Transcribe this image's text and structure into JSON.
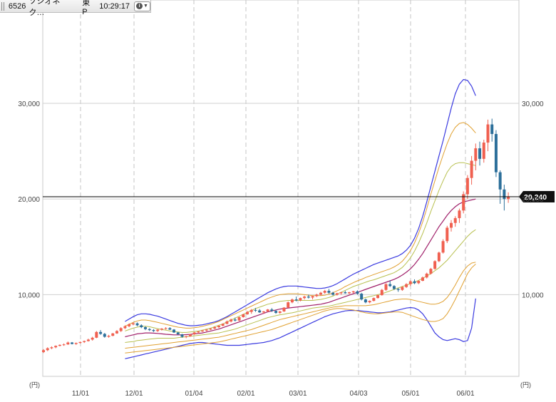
{
  "header": {
    "code": "6526",
    "name": "ソシオネク…",
    "exchange": "東P",
    "time": "10:29:17",
    "info_icon": "info-icon",
    "menu_icon": "caret-down-icon"
  },
  "chart_data": {
    "type": "candlestick",
    "x_ticks": [
      "11/01",
      "12/01",
      "01/04",
      "02/01",
      "03/01",
      "04/03",
      "05/01",
      "06/01"
    ],
    "y_ticks": [
      10000,
      20000,
      30000
    ],
    "y_tick_labels": [
      "10,000",
      "20,000",
      "30,000"
    ],
    "ylim": [
      1000,
      40000
    ],
    "y_unit": "(円)",
    "grid": true,
    "current_price": 20240,
    "current_price_label": "20,240",
    "colors": {
      "up": "#f06050",
      "down": "#2c6f9a",
      "outer_band": "#3a3ae0",
      "mid_band": "#e0a030",
      "inner_band": "#b8c050",
      "sma": "#a0206a",
      "price_line": "#000000"
    },
    "candles": [
      [
        4000,
        4300,
        3900,
        4200
      ],
      [
        4200,
        4500,
        4100,
        4400
      ],
      [
        4400,
        4600,
        4300,
        4500
      ],
      [
        4500,
        4700,
        4400,
        4650
      ],
      [
        4650,
        4800,
        4600,
        4750
      ],
      [
        4750,
        4900,
        4650,
        4800
      ],
      [
        4800,
        5100,
        4750,
        5000
      ],
      [
        5000,
        5050,
        4800,
        4850
      ],
      [
        4850,
        5000,
        4750,
        4950
      ],
      [
        4950,
        5100,
        4900,
        5050
      ],
      [
        5050,
        5200,
        4950,
        5150
      ],
      [
        5150,
        5400,
        5100,
        5300
      ],
      [
        5300,
        5600,
        5200,
        5500
      ],
      [
        5500,
        6200,
        5450,
        6100
      ],
      [
        6100,
        6300,
        5800,
        5900
      ],
      [
        5900,
        6000,
        5500,
        5600
      ],
      [
        5600,
        5800,
        5500,
        5700
      ],
      [
        5700,
        6000,
        5650,
        5950
      ],
      [
        5950,
        6300,
        5900,
        6200
      ],
      [
        6200,
        6600,
        6100,
        6500
      ],
      [
        6500,
        6800,
        6400,
        6700
      ],
      [
        6700,
        7000,
        6600,
        6900
      ],
      [
        6900,
        7100,
        6800,
        7000
      ],
      [
        7000,
        7100,
        6700,
        6800
      ],
      [
        6800,
        6900,
        6500,
        6600
      ],
      [
        6600,
        6700,
        6300,
        6400
      ],
      [
        6400,
        6500,
        6200,
        6300
      ],
      [
        6300,
        6400,
        6100,
        6200
      ],
      [
        6200,
        6400,
        6100,
        6350
      ],
      [
        6350,
        6500,
        6250,
        6450
      ],
      [
        6450,
        6600,
        6350,
        6500
      ],
      [
        6500,
        6600,
        6300,
        6350
      ],
      [
        6350,
        6400,
        6000,
        6050
      ],
      [
        6050,
        6100,
        5800,
        5850
      ],
      [
        5850,
        5900,
        5500,
        5600
      ],
      [
        5600,
        5700,
        5450,
        5650
      ],
      [
        5650,
        5900,
        5600,
        5850
      ],
      [
        5850,
        6100,
        5800,
        6050
      ],
      [
        6050,
        6200,
        5950,
        6150
      ],
      [
        6150,
        6300,
        6100,
        6250
      ],
      [
        6250,
        6400,
        6150,
        6350
      ],
      [
        6350,
        6500,
        6300,
        6450
      ],
      [
        6450,
        6700,
        6400,
        6600
      ],
      [
        6600,
        6800,
        6500,
        6750
      ],
      [
        6750,
        7000,
        6700,
        6950
      ],
      [
        6950,
        7300,
        6900,
        7200
      ],
      [
        7200,
        7500,
        7100,
        7400
      ],
      [
        7400,
        7600,
        7200,
        7300
      ],
      [
        7300,
        7700,
        7250,
        7650
      ],
      [
        7650,
        8000,
        7600,
        7950
      ],
      [
        7950,
        8300,
        7900,
        8200
      ],
      [
        8200,
        8500,
        8000,
        8400
      ],
      [
        8400,
        8600,
        8200,
        8350
      ],
      [
        8350,
        8500,
        8100,
        8150
      ],
      [
        8150,
        8300,
        8000,
        8250
      ],
      [
        8250,
        8500,
        8200,
        8450
      ],
      [
        8450,
        8600,
        8200,
        8300
      ],
      [
        8300,
        8400,
        8000,
        8100
      ],
      [
        8100,
        8300,
        8000,
        8250
      ],
      [
        8250,
        8700,
        8200,
        8650
      ],
      [
        8650,
        9300,
        8600,
        9200
      ],
      [
        9200,
        9600,
        9100,
        9500
      ],
      [
        9500,
        9800,
        9300,
        9400
      ],
      [
        9400,
        9700,
        9300,
        9650
      ],
      [
        9650,
        9900,
        9500,
        9800
      ],
      [
        9800,
        10000,
        9600,
        9700
      ],
      [
        9700,
        9900,
        9500,
        9850
      ],
      [
        9850,
        10100,
        9750,
        10000
      ],
      [
        10000,
        10300,
        9900,
        10200
      ],
      [
        10200,
        10500,
        10100,
        10400
      ],
      [
        10400,
        10600,
        10100,
        10200
      ],
      [
        10200,
        10300,
        9900,
        10000
      ],
      [
        10000,
        10200,
        9900,
        10150
      ],
      [
        10150,
        10300,
        10000,
        10250
      ],
      [
        10250,
        10400,
        10100,
        10150
      ],
      [
        10150,
        10300,
        10050,
        10250
      ],
      [
        10250,
        10400,
        10150,
        10350
      ],
      [
        10350,
        10450,
        10000,
        10100
      ],
      [
        10100,
        10200,
        9400,
        9500
      ],
      [
        9500,
        9600,
        9100,
        9200
      ],
      [
        9200,
        9400,
        9100,
        9350
      ],
      [
        9350,
        9700,
        9300,
        9650
      ],
      [
        9650,
        10000,
        9600,
        9950
      ],
      [
        9950,
        10600,
        9900,
        10500
      ],
      [
        10500,
        11200,
        10400,
        11100
      ],
      [
        11100,
        11500,
        10800,
        10900
      ],
      [
        10900,
        11000,
        10500,
        10600
      ],
      [
        10600,
        10700,
        10300,
        10500
      ],
      [
        10500,
        10900,
        10400,
        10800
      ],
      [
        10800,
        11200,
        10700,
        11100
      ],
      [
        11100,
        11500,
        10900,
        11400
      ],
      [
        11400,
        11600,
        11100,
        11200
      ],
      [
        11200,
        11500,
        11100,
        11450
      ],
      [
        11450,
        11900,
        11400,
        11800
      ],
      [
        11800,
        12300,
        11700,
        12200
      ],
      [
        12200,
        12800,
        12100,
        12700
      ],
      [
        12700,
        13600,
        12600,
        13500
      ],
      [
        13500,
        14500,
        13400,
        14400
      ],
      [
        14400,
        15800,
        14300,
        15600
      ],
      [
        15600,
        17200,
        15400,
        17000
      ],
      [
        17000,
        17800,
        16600,
        17500
      ],
      [
        17500,
        18200,
        17100,
        18000
      ],
      [
        18000,
        19000,
        17500,
        18800
      ],
      [
        18800,
        20800,
        18500,
        20500
      ],
      [
        20500,
        22500,
        20000,
        22200
      ],
      [
        22200,
        24500,
        21500,
        24000
      ],
      [
        24000,
        25800,
        23000,
        25300
      ],
      [
        25300,
        26000,
        23500,
        24200
      ],
      [
        24200,
        26200,
        23800,
        25900
      ],
      [
        25900,
        28300,
        25000,
        27800
      ],
      [
        27800,
        28400,
        26000,
        26800
      ],
      [
        26800,
        27200,
        22300,
        22800
      ],
      [
        22800,
        23000,
        19500,
        21000
      ],
      [
        21000,
        21500,
        18800,
        20000
      ],
      [
        20000,
        20700,
        19600,
        20240
      ]
    ],
    "bands": {
      "start_index": 20,
      "outer_upper": [
        7200,
        7450,
        7700,
        7900,
        8000,
        8000,
        7950,
        7850,
        7750,
        7600,
        7450,
        7300,
        7150,
        7000,
        6900,
        6800,
        6750,
        6750,
        6800,
        6850,
        6950,
        7050,
        7150,
        7300,
        7500,
        7700,
        7950,
        8200,
        8450,
        8700,
        8950,
        9200,
        9450,
        9700,
        9950,
        10200,
        10400,
        10600,
        10750,
        10850,
        10900,
        10900,
        10900,
        10850,
        10800,
        10750,
        10700,
        10650,
        10650,
        10700,
        10800,
        10950,
        11150,
        11400,
        11650,
        11900,
        12150,
        12350,
        12550,
        12750,
        12950,
        13150,
        13300,
        13450,
        13600,
        13750,
        13900,
        14050,
        14300,
        14650,
        15150,
        15900,
        16900,
        18200,
        19700,
        21300,
        22900,
        24500,
        26100,
        27800,
        29500,
        31000,
        32000,
        32500,
        32400,
        31800,
        30800
      ],
      "mid_upper": [
        6700,
        6900,
        7100,
        7250,
        7350,
        7350,
        7300,
        7200,
        7100,
        7000,
        6900,
        6800,
        6700,
        6600,
        6550,
        6500,
        6500,
        6550,
        6600,
        6700,
        6800,
        6900,
        7050,
        7200,
        7400,
        7600,
        7800,
        8000,
        8200,
        8400,
        8600,
        8800,
        9000,
        9200,
        9400,
        9600,
        9750,
        9900,
        10000,
        10050,
        10100,
        10100,
        10100,
        10050,
        10000,
        9950,
        9900,
        9900,
        9900,
        9950,
        10050,
        10200,
        10400,
        10600,
        10850,
        11050,
        11250,
        11450,
        11600,
        11800,
        11950,
        12100,
        12250,
        12400,
        12550,
        12700,
        12900,
        13150,
        13500,
        14000,
        14600,
        15400,
        16400,
        17600,
        19000,
        20500,
        21900,
        23300,
        24600,
        25800,
        26800,
        27500,
        27900,
        28000,
        27800,
        27400,
        26900
      ],
      "inner_upper": [
        6200,
        6350,
        6500,
        6600,
        6700,
        6700,
        6650,
        6550,
        6450,
        6350,
        6300,
        6200,
        6150,
        6100,
        6050,
        6050,
        6100,
        6150,
        6200,
        6300,
        6400,
        6500,
        6650,
        6800,
        6950,
        7150,
        7350,
        7550,
        7750,
        7950,
        8150,
        8350,
        8550,
        8700,
        8850,
        9000,
        9100,
        9200,
        9300,
        9350,
        9400,
        9400,
        9400,
        9400,
        9400,
        9400,
        9400,
        9450,
        9500,
        9600,
        9700,
        9850,
        10050,
        10250,
        10450,
        10650,
        10850,
        11000,
        11150,
        11300,
        11450,
        11550,
        11700,
        11850,
        12000,
        12150,
        12300,
        12550,
        12850,
        13300,
        13850,
        14550,
        15400,
        16400,
        17500,
        18700,
        19800,
        20900,
        21900,
        22800,
        23400,
        23700,
        23800,
        23800,
        23700,
        23600,
        23500
      ],
      "sma": [
        5600,
        5700,
        5800,
        5900,
        5950,
        6000,
        6000,
        5980,
        5950,
        5900,
        5860,
        5830,
        5800,
        5800,
        5800,
        5820,
        5850,
        5900,
        5950,
        6000,
        6100,
        6200,
        6300,
        6400,
        6550,
        6700,
        6850,
        7000,
        7150,
        7300,
        7450,
        7600,
        7750,
        7900,
        8050,
        8200,
        8300,
        8400,
        8500,
        8550,
        8600,
        8650,
        8700,
        8750,
        8800,
        8850,
        8900,
        8950,
        9000,
        9100,
        9200,
        9350,
        9500,
        9650,
        9800,
        9950,
        10100,
        10250,
        10400,
        10550,
        10700,
        10850,
        11000,
        11150,
        11300,
        11450,
        11600,
        11800,
        12050,
        12350,
        12700,
        13150,
        13700,
        14300,
        15000,
        15700,
        16400,
        17100,
        17700,
        18300,
        18800,
        19200,
        19500,
        19700,
        19800,
        19900,
        20000
      ],
      "inner_lower": [
        5000,
        5050,
        5100,
        5200,
        5250,
        5300,
        5350,
        5400,
        5450,
        5450,
        5450,
        5450,
        5450,
        5500,
        5550,
        5600,
        5650,
        5700,
        5750,
        5800,
        5850,
        5900,
        5950,
        6000,
        6100,
        6200,
        6300,
        6400,
        6550,
        6700,
        6850,
        7000,
        7150,
        7300,
        7450,
        7600,
        7700,
        7800,
        7900,
        7950,
        8050,
        8100,
        8200,
        8300,
        8400,
        8500,
        8600,
        8650,
        8700,
        8750,
        8800,
        8900,
        9000,
        9100,
        9200,
        9300,
        9400,
        9500,
        9600,
        9700,
        9800,
        9900,
        10000,
        10100,
        10250,
        10400,
        10550,
        10700,
        10850,
        11000,
        11150,
        11300,
        11500,
        11700,
        11950,
        12200,
        12500,
        12800,
        13200,
        13600,
        14100,
        14600,
        15100,
        15600,
        16100,
        16500,
        16800
      ],
      "mid_lower": [
        4400,
        4450,
        4500,
        4550,
        4600,
        4650,
        4700,
        4750,
        4800,
        4850,
        4900,
        4950,
        5000,
        5050,
        5100,
        5150,
        5200,
        5250,
        5300,
        5350,
        5400,
        5450,
        5500,
        5550,
        5650,
        5750,
        5850,
        5950,
        6050,
        6150,
        6250,
        6350,
        6500,
        6650,
        6800,
        6950,
        7100,
        7250,
        7400,
        7500,
        7600,
        7700,
        7800,
        7900,
        8000,
        8100,
        8200,
        8300,
        8400,
        8500,
        8600,
        8700,
        8750,
        8800,
        8850,
        8850,
        8850,
        8850,
        8850,
        8850,
        8900,
        8950,
        9050,
        9150,
        9250,
        9350,
        9450,
        9500,
        9550,
        9550,
        9500,
        9400,
        9300,
        9200,
        9100,
        9000,
        9000,
        9100,
        9300,
        9700,
        10300,
        11000,
        11800,
        12500,
        13000,
        13300,
        13400
      ],
      "mid_lower_far": [
        3900,
        3950,
        4000,
        4050,
        4100,
        4150,
        4200,
        4250,
        4300,
        4350,
        4400,
        4450,
        4500,
        4550,
        4600,
        4650,
        4700,
        4750,
        4800,
        4850,
        4900,
        4950,
        5000,
        5050,
        5150,
        5250,
        5350,
        5450,
        5550,
        5650,
        5750,
        5850,
        5950,
        6050,
        6150,
        6250,
        6350,
        6500,
        6650,
        6800,
        6950,
        7100,
        7250,
        7400,
        7550,
        7700,
        7850,
        8000,
        8150,
        8300,
        8400,
        8500,
        8550,
        8550,
        8500,
        8450,
        8400,
        8300,
        8200,
        8100,
        8050,
        8000,
        8000,
        8050,
        8100,
        8150,
        8200,
        8200,
        8150,
        8000,
        7850,
        7700,
        7550,
        7400,
        7300,
        7200,
        7200,
        7300,
        7500,
        8000,
        8700,
        9500,
        10400,
        11300,
        12200,
        12800,
        13200
      ],
      "outer_lower": [
        3300,
        3400,
        3500,
        3600,
        3700,
        3800,
        3900,
        4000,
        4100,
        4200,
        4300,
        4400,
        4500,
        4600,
        4700,
        4800,
        4900,
        4950,
        5000,
        5000,
        4950,
        4900,
        4850,
        4800,
        4750,
        4700,
        4700,
        4700,
        4700,
        4750,
        4800,
        4850,
        4900,
        4950,
        5000,
        5100,
        5200,
        5350,
        5500,
        5700,
        5900,
        6100,
        6300,
        6500,
        6700,
        6900,
        7100,
        7300,
        7500,
        7700,
        7850,
        8000,
        8100,
        8200,
        8300,
        8350,
        8350,
        8350,
        8300,
        8250,
        8200,
        8150,
        8100,
        8100,
        8150,
        8200,
        8300,
        8400,
        8500,
        8600,
        8650,
        8600,
        8400,
        8000,
        7400,
        6700,
        6000,
        5600,
        5300,
        5200,
        5300,
        5400,
        5300,
        5100,
        5200,
        6500,
        9600
      ]
    }
  }
}
